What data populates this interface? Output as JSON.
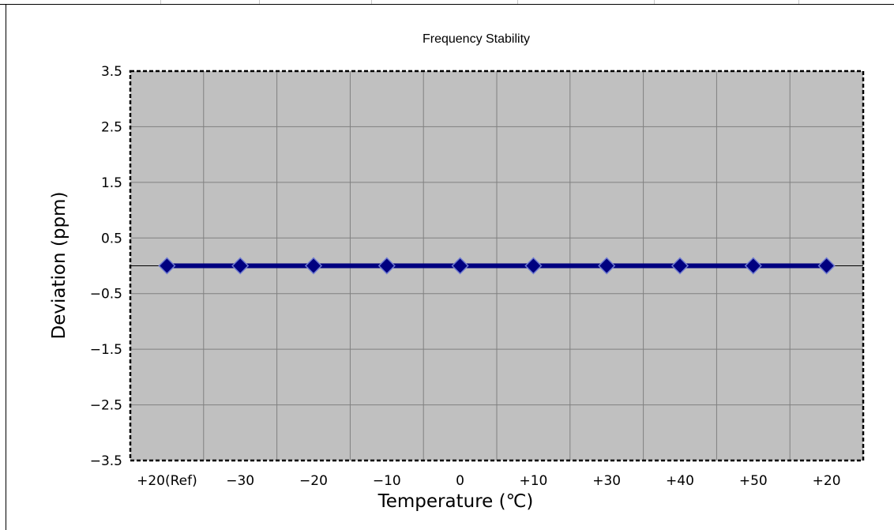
{
  "chart_data": {
    "type": "line",
    "title": "Frequency Stability",
    "xlabel": "Temperature (℃)",
    "ylabel": "Deviation (ppm)",
    "categories": [
      "+20(Ref)",
      "−30",
      "−20",
      "−10",
      "0",
      "+10",
      "+30",
      "+40",
      "+50",
      "+20"
    ],
    "series": [
      {
        "values": [
          0,
          0,
          0,
          0,
          0,
          0,
          0,
          0,
          0,
          0
        ]
      }
    ],
    "ylim": [
      -3.5,
      3.5
    ],
    "yticks": [
      3.5,
      2.5,
      1.5,
      0.5,
      -0.5,
      -1.5,
      -2.5,
      -3.5
    ],
    "ytick_labels": [
      "3.5",
      "2.5",
      "1.5",
      "0.5",
      "−0.5",
      "−1.5",
      "−2.5",
      "−3.5"
    ],
    "grid": true,
    "legend": "none",
    "colors": {
      "series": "#000080",
      "marker_edge": "#6f7bd0",
      "plot_background": "#c0c0c0",
      "grid": "#808080"
    }
  }
}
